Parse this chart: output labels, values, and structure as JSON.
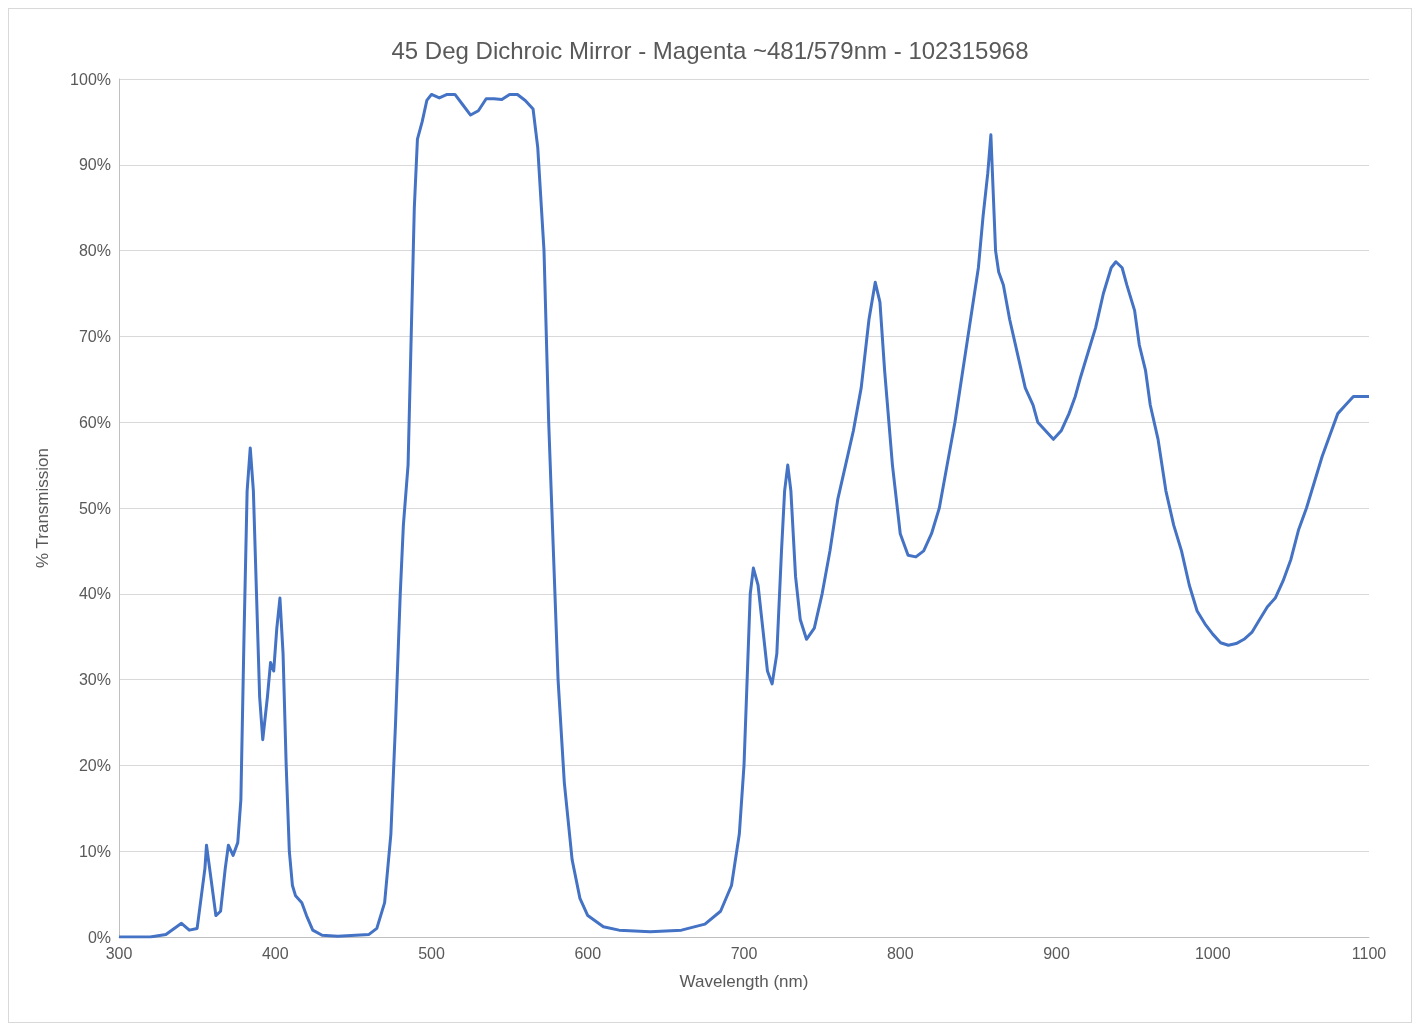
{
  "chart_data": {
    "type": "line",
    "title": "45 Deg Dichroic Mirror - Magenta ~481/579nm - 102315968",
    "xlabel": "Wavelength (nm)",
    "ylabel": "% Transmission",
    "x": [
      300,
      320,
      330,
      340,
      345,
      350,
      355,
      356,
      358,
      362,
      365,
      368,
      370,
      373,
      376,
      378,
      380,
      382,
      384,
      386,
      388,
      390,
      392,
      395,
      397,
      399,
      401,
      403,
      405,
      407,
      409,
      411,
      413,
      417,
      420,
      424,
      430,
      440,
      460,
      465,
      470,
      474,
      477,
      480,
      482,
      485,
      487,
      489,
      491,
      494,
      497,
      500,
      505,
      510,
      515,
      520,
      525,
      530,
      535,
      540,
      545,
      550,
      555,
      560,
      565,
      568,
      572,
      575,
      578,
      581,
      585,
      590,
      595,
      600,
      610,
      620,
      640,
      660,
      675,
      685,
      692,
      697,
      700,
      702,
      704,
      706,
      709,
      712,
      715,
      718,
      721,
      724,
      726,
      728,
      730,
      733,
      736,
      740,
      745,
      750,
      755,
      760,
      765,
      770,
      775,
      780,
      784,
      787,
      790,
      795,
      800,
      805,
      810,
      815,
      820,
      825,
      830,
      835,
      840,
      845,
      850,
      853,
      856,
      858,
      861,
      863,
      866,
      870,
      875,
      880,
      885,
      888,
      893,
      898,
      903,
      908,
      912,
      915,
      920,
      925,
      930,
      935,
      938,
      942,
      945,
      950,
      953,
      957,
      960,
      965,
      970,
      975,
      980,
      985,
      990,
      995,
      1000,
      1005,
      1010,
      1015,
      1020,
      1025,
      1030,
      1035,
      1040,
      1045,
      1050,
      1055,
      1060,
      1065,
      1070,
      1075,
      1080,
      1085,
      1090,
      1095,
      1100
    ],
    "series": [
      {
        "color": "#4472c4",
        "values": [
          0,
          0,
          0.3,
          1.6,
          0.8,
          1,
          8,
          10.7,
          8,
          2.5,
          3,
          8,
          10.7,
          9.5,
          11,
          16,
          35,
          52,
          57,
          52,
          40,
          28,
          23,
          28,
          32,
          31,
          36,
          39.5,
          33,
          20,
          10,
          6,
          4.8,
          4,
          2.5,
          0.8,
          0.2,
          0.1,
          0.3,
          1,
          4,
          12,
          25,
          40,
          48,
          55,
          70,
          85,
          93,
          95,
          97.5,
          98.2,
          97.8,
          98.2,
          98.2,
          97,
          95.8,
          96.3,
          97.7,
          97.7,
          97.6,
          98.2,
          98.2,
          97.5,
          96.5,
          92,
          80,
          60,
          45,
          30,
          18,
          9,
          4.5,
          2.5,
          1.2,
          0.8,
          0.6,
          0.8,
          1.5,
          3,
          6,
          12,
          20,
          30,
          40,
          43,
          41,
          36,
          31,
          29.5,
          33,
          45,
          52,
          55,
          52,
          42,
          37,
          34.7,
          36,
          40,
          45,
          51,
          55,
          59,
          64,
          72,
          76.3,
          74,
          66,
          55,
          47,
          44.5,
          44.3,
          45,
          47,
          50,
          55,
          60,
          66,
          72,
          78,
          84,
          89,
          93.5,
          80,
          77.5,
          76,
          72,
          68,
          64,
          62,
          60,
          59,
          58,
          59,
          61,
          63,
          65,
          68,
          71,
          75,
          78,
          78.7,
          78,
          76,
          73,
          69,
          66,
          62,
          58,
          52,
          48,
          45,
          41,
          38,
          36.5,
          35.3,
          34.3,
          34,
          34.2,
          34.7,
          35.5,
          37,
          38.5,
          39.5,
          41.5,
          44,
          47.5,
          50,
          53,
          56,
          58.5,
          61,
          62,
          63,
          63,
          63
        ]
      }
    ],
    "xlim": [
      300,
      1100
    ],
    "xticks": [
      300,
      400,
      500,
      600,
      700,
      800,
      900,
      1000,
      1100
    ],
    "ylim": [
      0,
      100
    ],
    "yticks": [
      {
        "value": 0,
        "label": "0%"
      },
      {
        "value": 10,
        "label": "10%"
      },
      {
        "value": 20,
        "label": "20%"
      },
      {
        "value": 30,
        "label": "30%"
      },
      {
        "value": 40,
        "label": "40%"
      },
      {
        "value": 50,
        "label": "50%"
      },
      {
        "value": 60,
        "label": "60%"
      },
      {
        "value": 70,
        "label": "70%"
      },
      {
        "value": 80,
        "label": "80%"
      },
      {
        "value": 90,
        "label": "90%"
      },
      {
        "value": 100,
        "label": "100%"
      }
    ],
    "grid": "y"
  }
}
